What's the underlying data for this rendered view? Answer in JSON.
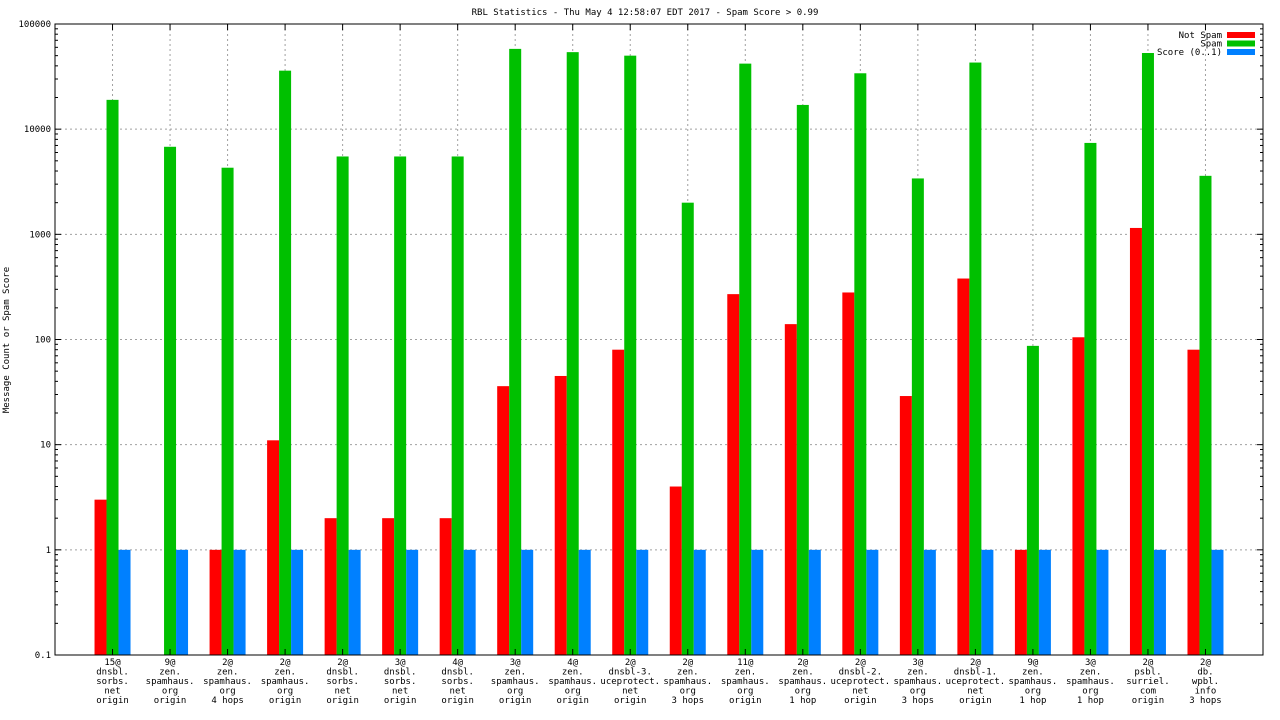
{
  "chart_data": {
    "type": "bar",
    "title": "RBL Statistics - Thu May  4 12:58:07 EDT 2017 - Spam Score > 0.99",
    "ylabel": "Message Count or Spam Score",
    "xlabel": "",
    "yscale": "log",
    "ylim": [
      0.1,
      100000
    ],
    "grid": true,
    "legend_position": "top-right",
    "y_ticks": [
      "0.1",
      "1",
      "10",
      "100",
      "1000",
      "10000",
      "100000"
    ],
    "categories": [
      [
        "15@",
        "dnsbl.",
        "sorbs.",
        "net",
        "origin"
      ],
      [
        "9@",
        "zen.",
        "spamhaus.",
        "org",
        "origin"
      ],
      [
        "2@",
        "zen.",
        "spamhaus.",
        "org",
        "4 hops"
      ],
      [
        "2@",
        "zen.",
        "spamhaus.",
        "org",
        "origin"
      ],
      [
        "2@",
        "dnsbl.",
        "sorbs.",
        "net",
        "origin"
      ],
      [
        "3@",
        "dnsbl.",
        "sorbs.",
        "net",
        "origin"
      ],
      [
        "4@",
        "dnsbl.",
        "sorbs.",
        "net",
        "origin"
      ],
      [
        "3@",
        "zen.",
        "spamhaus.",
        "org",
        "origin"
      ],
      [
        "4@",
        "zen.",
        "spamhaus.",
        "org",
        "origin"
      ],
      [
        "2@",
        "dnsbl-3.",
        "uceprotect.",
        "net",
        "origin"
      ],
      [
        "2@",
        "zen.",
        "spamhaus.",
        "org",
        "3 hops"
      ],
      [
        "11@",
        "zen.",
        "spamhaus.",
        "org",
        "origin"
      ],
      [
        "2@",
        "zen.",
        "spamhaus.",
        "org",
        "1 hop"
      ],
      [
        "2@",
        "dnsbl-2.",
        "uceprotect.",
        "net",
        "origin"
      ],
      [
        "3@",
        "zen.",
        "spamhaus.",
        "org",
        "3 hops"
      ],
      [
        "2@",
        "dnsbl-1.",
        "uceprotect.",
        "net",
        "origin"
      ],
      [
        "9@",
        "zen.",
        "spamhaus.",
        "org",
        "1 hop"
      ],
      [
        "3@",
        "zen.",
        "spamhaus.",
        "org",
        "1 hop"
      ],
      [
        "2@",
        "psbl.",
        "surriel.",
        "com",
        "origin"
      ],
      [
        "2@",
        "db.",
        "wpbl.",
        "info",
        "3 hops"
      ]
    ],
    "series": [
      {
        "name": "Not Spam",
        "color": "#ff0000",
        "values": [
          3,
          null,
          1,
          11,
          2,
          2,
          2,
          36,
          45,
          80,
          4,
          270,
          140,
          280,
          29,
          380,
          1,
          105,
          1150,
          80
        ]
      },
      {
        "name": "Spam",
        "color": "#00c000",
        "values": [
          19000,
          6800,
          4300,
          36000,
          5500,
          5500,
          5500,
          58000,
          54000,
          50000,
          2000,
          42000,
          17000,
          34000,
          3400,
          43000,
          87,
          7400,
          53000,
          3600
        ]
      },
      {
        "name": "Score (0..1)",
        "color": "#0080ff",
        "values": [
          1,
          1,
          1,
          1,
          1,
          1,
          1,
          1,
          1,
          1,
          1,
          1,
          1,
          1,
          1,
          1,
          1,
          1,
          1,
          1
        ]
      }
    ]
  }
}
